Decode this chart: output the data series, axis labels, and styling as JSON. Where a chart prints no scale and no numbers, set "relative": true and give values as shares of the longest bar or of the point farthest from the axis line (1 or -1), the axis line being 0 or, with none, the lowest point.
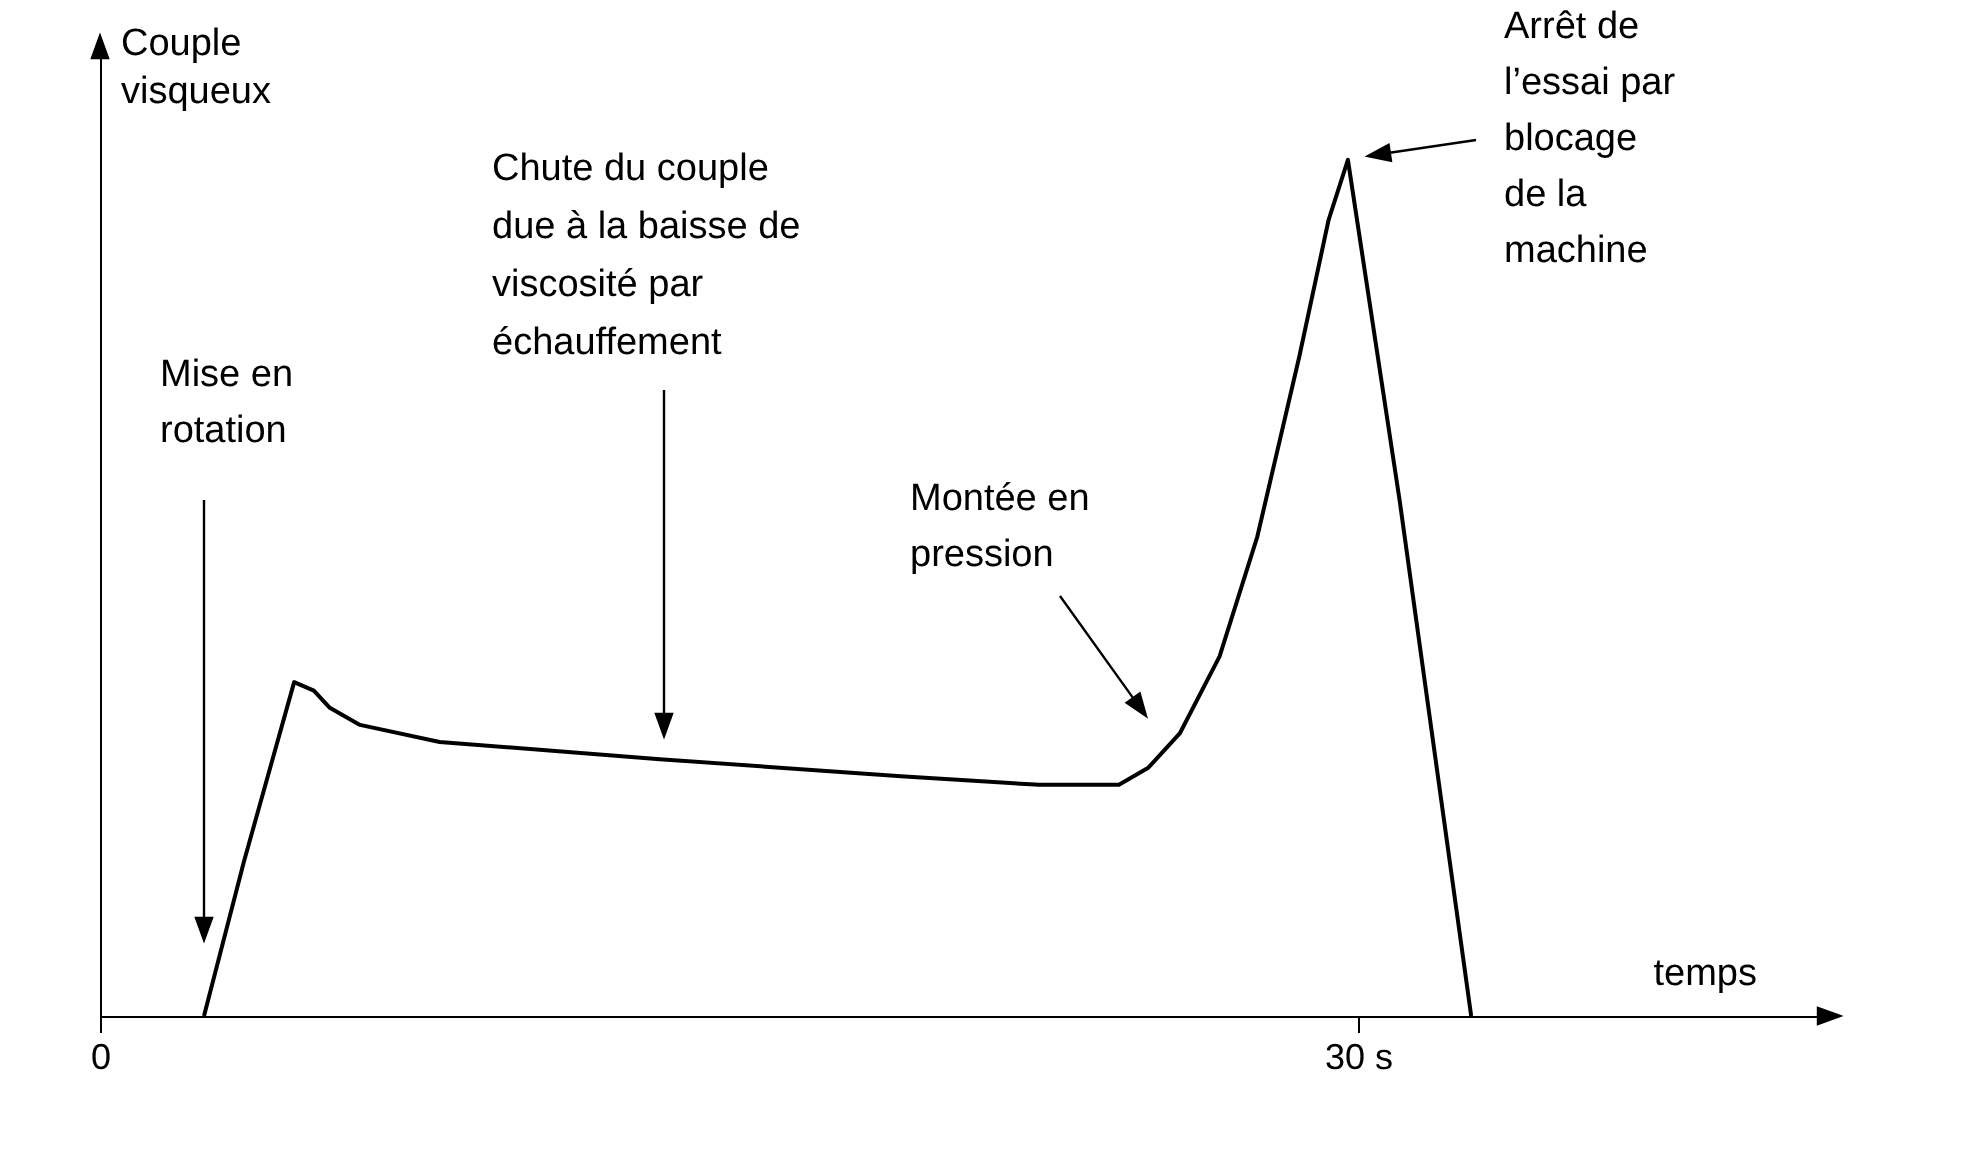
{
  "chart_data": {
    "type": "line",
    "xlabel": "temps",
    "ylabel": "Couple visqueux",
    "relative": true,
    "color": "#000000",
    "line_style": "solid",
    "x": [
      2.48,
      3.43,
      4.63,
      5.1,
      5.48,
      6.2,
      8.1,
      13.35,
      19.1,
      22.4,
      24.3,
      25.0,
      25.75,
      26.7,
      27.6,
      28.6,
      29.3,
      29.76,
      31.0,
      32.7
    ],
    "values": [
      0,
      0.18,
      0.39,
      0.38,
      0.36,
      0.34,
      0.32,
      0.3,
      0.28,
      0.27,
      0.27,
      0.29,
      0.33,
      0.42,
      0.56,
      0.77,
      0.93,
      1.0,
      0.6,
      0
    ],
    "xlim": [
      0,
      41.4
    ],
    "xticks": [
      0,
      {
        "value": 30,
        "label": "30 s"
      }
    ],
    "annotations": [
      "Mise en rotation",
      "Chute du couple due à la baisse de viscosité par échauffement",
      "Montée en pression",
      "Arrêt de l’essai par blocage de la machine"
    ]
  }
}
